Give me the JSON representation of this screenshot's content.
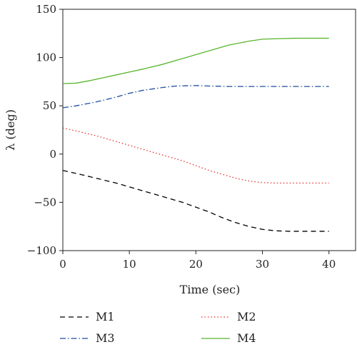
{
  "chart_data": {
    "type": "line",
    "xlabel": "Time (sec)",
    "ylabel": "λ (deg)",
    "xlim": [
      0,
      44
    ],
    "ylim": [
      -100,
      150
    ],
    "x_ticks": [
      0,
      10,
      20,
      30,
      40
    ],
    "y_ticks": [
      -100,
      -50,
      0,
      50,
      100,
      150
    ],
    "x_tick_labels": [
      "0",
      "10",
      "20",
      "30",
      "40"
    ],
    "y_tick_labels": [
      "−100",
      "−50",
      "0",
      "50",
      "100",
      "150"
    ],
    "grid": false,
    "legend_position": "bottom",
    "series": [
      {
        "name": "M1",
        "color": "#000000",
        "style": "dashed",
        "x": [
          0,
          2,
          5,
          8,
          10,
          12,
          15,
          18,
          20,
          22,
          24,
          26,
          28,
          30,
          32,
          34,
          36,
          38,
          40
        ],
        "y": [
          -17,
          -20,
          -25,
          -30,
          -34,
          -38,
          -44,
          -50,
          -55,
          -60,
          -66,
          -71,
          -75,
          -78,
          -79.5,
          -80,
          -80,
          -80,
          -80
        ]
      },
      {
        "name": "M2",
        "color": "#e8312b",
        "style": "dotted",
        "x": [
          0,
          2,
          5,
          8,
          10,
          12,
          15,
          18,
          20,
          22,
          24,
          26,
          28,
          30,
          32,
          34,
          36,
          38,
          40
        ],
        "y": [
          27,
          24,
          19,
          13,
          9,
          5,
          -1,
          -7,
          -12,
          -17,
          -21,
          -25,
          -28,
          -29.5,
          -30,
          -30,
          -30,
          -30,
          -30
        ]
      },
      {
        "name": "M3",
        "color": "#1f4e9c",
        "style": "dash-dot",
        "x": [
          0,
          2,
          5,
          8,
          10,
          12,
          15,
          17,
          20,
          22,
          25,
          28,
          30,
          32,
          35,
          38,
          40
        ],
        "y": [
          48,
          50,
          54,
          59,
          63,
          66,
          69,
          70.5,
          71,
          70.5,
          70,
          70,
          70,
          70,
          70,
          70,
          70
        ]
      },
      {
        "name": "M4",
        "color": "#5ab52e",
        "style": "solid",
        "x": [
          0,
          2,
          4,
          6,
          8,
          10,
          12,
          15,
          18,
          20,
          22,
          25,
          28,
          30,
          32,
          35,
          38,
          40
        ],
        "y": [
          73,
          73.5,
          76,
          79,
          82,
          85,
          88,
          93,
          99,
          103,
          107,
          113,
          117,
          119,
          119.5,
          120,
          120,
          120
        ]
      }
    ]
  }
}
